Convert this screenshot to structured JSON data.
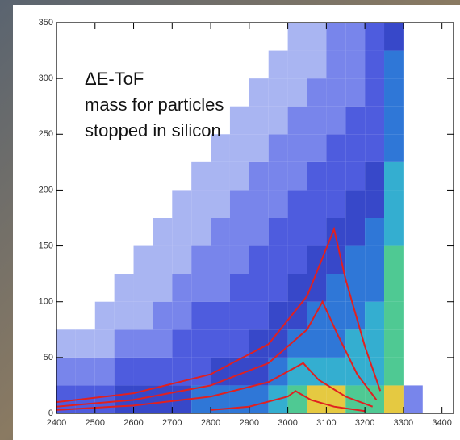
{
  "chart_data": {
    "type": "heatmap",
    "annotation": [
      "ΔE-ToF",
      "mass for particles",
      "stopped in silicon"
    ],
    "xlim": [
      2400,
      3430
    ],
    "ylim": [
      0,
      350
    ],
    "xticks": [
      2400,
      2500,
      2600,
      2700,
      2800,
      2900,
      3000,
      3100,
      3200,
      3300,
      3400
    ],
    "yticks": [
      0,
      50,
      100,
      150,
      200,
      250,
      300,
      350
    ],
    "xbins": [
      2400,
      2450,
      2500,
      2550,
      2600,
      2650,
      2700,
      2750,
      2800,
      2850,
      2900,
      2950,
      3000,
      3050,
      3100,
      3150,
      3200,
      3250,
      3300,
      3350,
      3400
    ],
    "ybins": [
      0,
      25,
      50,
      75,
      100,
      125,
      150,
      175,
      200,
      225,
      250,
      275,
      300,
      325,
      350
    ],
    "colorscale": [
      "#ffffff",
      "#9aa8f0",
      "#6070e8",
      "#2f3fd8",
      "#1428c0",
      "#0a5fd0",
      "#10a0c8",
      "#30c080",
      "#e0c020"
    ],
    "z": [
      [
        3,
        3,
        3,
        4,
        4,
        4,
        4,
        5,
        5,
        5,
        5,
        6,
        7,
        8,
        8,
        7,
        7,
        8,
        2,
        0
      ],
      [
        2,
        2,
        2,
        3,
        3,
        3,
        3,
        3,
        4,
        4,
        4,
        5,
        6,
        6,
        6,
        6,
        6,
        7,
        0,
        0
      ],
      [
        1,
        1,
        1,
        2,
        2,
        2,
        3,
        3,
        3,
        3,
        4,
        4,
        5,
        5,
        5,
        6,
        6,
        7,
        0,
        0
      ],
      [
        0,
        0,
        1,
        1,
        1,
        2,
        2,
        3,
        3,
        3,
        3,
        4,
        4,
        5,
        5,
        5,
        6,
        7,
        0,
        0
      ],
      [
        0,
        0,
        0,
        1,
        1,
        1,
        2,
        2,
        2,
        3,
        3,
        3,
        4,
        4,
        5,
        5,
        5,
        7,
        0,
        0
      ],
      [
        0,
        0,
        0,
        0,
        1,
        1,
        1,
        2,
        2,
        2,
        3,
        3,
        3,
        4,
        4,
        5,
        5,
        7,
        0,
        0
      ],
      [
        0,
        0,
        0,
        0,
        0,
        1,
        1,
        1,
        2,
        2,
        2,
        3,
        3,
        3,
        4,
        4,
        5,
        6,
        0,
        0
      ],
      [
        0,
        0,
        0,
        0,
        0,
        0,
        1,
        1,
        1,
        2,
        2,
        2,
        3,
        3,
        3,
        4,
        4,
        6,
        0,
        0
      ],
      [
        0,
        0,
        0,
        0,
        0,
        0,
        0,
        1,
        1,
        1,
        2,
        2,
        2,
        3,
        3,
        3,
        4,
        6,
        0,
        0
      ],
      [
        0,
        0,
        0,
        0,
        0,
        0,
        0,
        0,
        1,
        1,
        1,
        2,
        2,
        2,
        3,
        3,
        3,
        5,
        0,
        0
      ],
      [
        0,
        0,
        0,
        0,
        0,
        0,
        0,
        0,
        0,
        1,
        1,
        1,
        2,
        2,
        2,
        3,
        3,
        5,
        0,
        0
      ],
      [
        0,
        0,
        0,
        0,
        0,
        0,
        0,
        0,
        0,
        0,
        1,
        1,
        1,
        2,
        2,
        2,
        3,
        5,
        0,
        0
      ],
      [
        0,
        0,
        0,
        0,
        0,
        0,
        0,
        0,
        0,
        0,
        0,
        1,
        1,
        1,
        2,
        2,
        3,
        5,
        0,
        0
      ],
      [
        0,
        0,
        0,
        0,
        0,
        0,
        0,
        0,
        0,
        0,
        0,
        0,
        1,
        1,
        2,
        2,
        3,
        4,
        0,
        0
      ]
    ],
    "curve_color": "#e02020",
    "curves": [
      {
        "x": [
          2400,
          2600,
          2800,
          2950,
          3050,
          3120,
          3150,
          3200,
          3240
        ],
        "y": [
          10,
          18,
          35,
          62,
          105,
          165,
          120,
          60,
          20
        ]
      },
      {
        "x": [
          2400,
          2600,
          2800,
          2950,
          3050,
          3090,
          3130,
          3180,
          3230
        ],
        "y": [
          6,
          12,
          25,
          45,
          75,
          100,
          70,
          35,
          12
        ]
      },
      {
        "x": [
          2400,
          2600,
          2800,
          2950,
          3040,
          3080,
          3150,
          3220
        ],
        "y": [
          3,
          7,
          15,
          28,
          45,
          30,
          15,
          6
        ]
      },
      {
        "x": [
          2800,
          2900,
          3000,
          3020,
          3060,
          3120,
          3200
        ],
        "y": [
          3,
          6,
          15,
          20,
          12,
          6,
          2
        ]
      }
    ]
  }
}
